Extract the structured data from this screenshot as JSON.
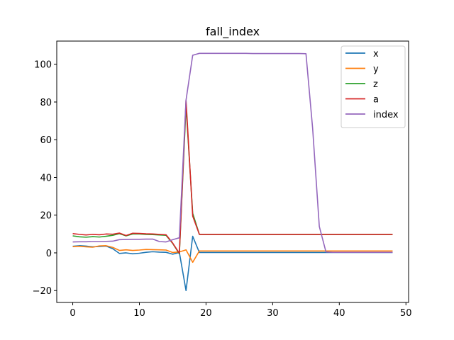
{
  "chart_data": {
    "type": "line",
    "title": "fall_index",
    "xlabel": "",
    "ylabel": "",
    "xlim": [
      -2.4,
      50.4
    ],
    "ylim": [
      -26.3,
      112.3
    ],
    "xticks": [
      0,
      10,
      20,
      30,
      40,
      50
    ],
    "yticks": [
      -20,
      0,
      20,
      40,
      60,
      80,
      100
    ],
    "grid": false,
    "legend_position": "top-right",
    "x": [
      0,
      1,
      2,
      3,
      4,
      5,
      6,
      7,
      8,
      9,
      10,
      11,
      12,
      13,
      14,
      15,
      16,
      17,
      18,
      19,
      20,
      21,
      22,
      23,
      24,
      25,
      26,
      27,
      28,
      29,
      30,
      31,
      32,
      33,
      34,
      35,
      36,
      37,
      38,
      39,
      40,
      41,
      42,
      43,
      44,
      45,
      46,
      47,
      48
    ],
    "series": [
      {
        "name": "x",
        "color": "#1f77b4",
        "values": [
          3.5,
          3.8,
          3.6,
          3.2,
          3.4,
          3.6,
          2.2,
          -0.3,
          0.0,
          -0.5,
          -0.2,
          0.3,
          0.6,
          0.4,
          0.3,
          -0.7,
          0.2,
          -20.0,
          8.8,
          0.2,
          0.2,
          0.2,
          0.2,
          0.2,
          0.2,
          0.2,
          0.2,
          0.2,
          0.2,
          0.2,
          0.2,
          0.2,
          0.2,
          0.2,
          0.2,
          0.2,
          0.2,
          0.2,
          0.2,
          0.2,
          0.2,
          0.2,
          0.2,
          0.2,
          0.2,
          0.2,
          0.2,
          0.2,
          0.2
        ]
      },
      {
        "name": "y",
        "color": "#ff7f0e",
        "values": [
          3.3,
          3.5,
          3.2,
          3.0,
          3.7,
          3.8,
          2.9,
          1.3,
          1.6,
          1.3,
          1.5,
          1.8,
          1.7,
          1.6,
          1.5,
          0.2,
          0.5,
          1.6,
          -5.0,
          1.0,
          1.0,
          1.0,
          1.0,
          1.0,
          1.0,
          1.0,
          1.0,
          1.0,
          1.0,
          1.0,
          1.0,
          1.0,
          1.0,
          1.0,
          1.0,
          1.0,
          1.0,
          1.0,
          1.0,
          1.0,
          1.0,
          1.0,
          1.0,
          1.0,
          1.0,
          1.0,
          1.0,
          1.0,
          1.0
        ]
      },
      {
        "name": "z",
        "color": "#2ca02c",
        "values": [
          9.0,
          8.5,
          8.3,
          8.6,
          8.4,
          8.8,
          9.3,
          10.2,
          9.0,
          10.0,
          10.0,
          9.8,
          9.7,
          9.5,
          9.3,
          5.0,
          -0.5,
          78.0,
          21.0,
          9.8,
          9.8,
          9.8,
          9.8,
          9.8,
          9.8,
          9.8,
          9.8,
          9.8,
          9.8,
          9.8,
          9.8,
          9.8,
          9.8,
          9.8,
          9.8,
          9.8,
          9.8,
          9.8,
          9.8,
          9.8,
          9.8,
          9.8,
          9.8,
          9.8,
          9.8,
          9.8,
          9.8,
          9.8,
          9.8
        ]
      },
      {
        "name": "a",
        "color": "#d62728",
        "values": [
          10.2,
          9.8,
          9.5,
          9.8,
          9.6,
          10.0,
          9.9,
          10.5,
          9.2,
          10.4,
          10.3,
          10.1,
          10.0,
          9.8,
          9.6,
          5.2,
          -0.2,
          81.0,
          19.5,
          9.8,
          9.8,
          9.8,
          9.8,
          9.8,
          9.8,
          9.8,
          9.8,
          9.8,
          9.8,
          9.8,
          9.8,
          9.8,
          9.8,
          9.8,
          9.8,
          9.8,
          9.8,
          9.8,
          9.8,
          9.8,
          9.8,
          9.8,
          9.8,
          9.8,
          9.8,
          9.8,
          9.8,
          9.8,
          9.8
        ]
      },
      {
        "name": "index",
        "color": "#9467bd",
        "values": [
          5.8,
          5.9,
          5.9,
          6.0,
          6.0,
          6.1,
          6.2,
          7.0,
          7.1,
          7.2,
          7.2,
          7.3,
          7.3,
          6.0,
          5.8,
          7.0,
          8.0,
          81.0,
          104.8,
          105.8,
          105.8,
          105.8,
          105.8,
          105.8,
          105.8,
          105.8,
          105.8,
          105.7,
          105.7,
          105.7,
          105.7,
          105.7,
          105.7,
          105.7,
          105.7,
          105.6,
          66.0,
          14.0,
          0.5,
          0.3,
          0.3,
          0.3,
          0.3,
          0.3,
          0.3,
          0.3,
          0.3,
          0.3,
          0.3
        ]
      }
    ]
  }
}
